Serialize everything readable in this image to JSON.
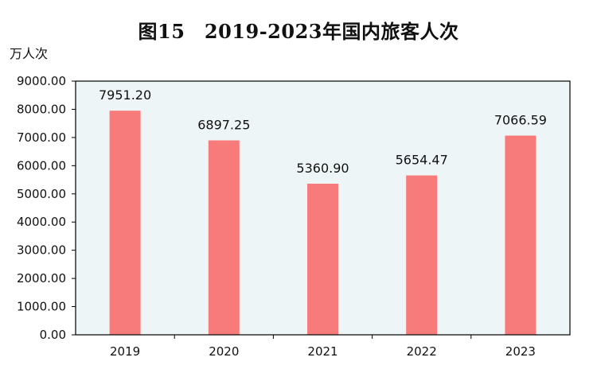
{
  "chart_data": {
    "type": "bar",
    "title": "图15　2019-2023年国内旅客人次",
    "ylabel": "万人次",
    "xlabel": "",
    "categories": [
      "2019",
      "2020",
      "2021",
      "2022",
      "2023"
    ],
    "values": [
      7951.2,
      6897.25,
      5360.9,
      5654.47,
      7066.59
    ],
    "value_labels": [
      "7951.20",
      "6897.25",
      "5360.90",
      "5654.47",
      "7066.59"
    ],
    "ylim": [
      0,
      9000
    ],
    "yticks": [
      "0.00",
      "1000.00",
      "2000.00",
      "3000.00",
      "4000.00",
      "5000.00",
      "6000.00",
      "7000.00",
      "8000.00",
      "9000.00"
    ],
    "grid": false,
    "colors": {
      "bar": "#f77b7b",
      "plot_background": "#eef5f7",
      "axis": "#000000"
    }
  }
}
